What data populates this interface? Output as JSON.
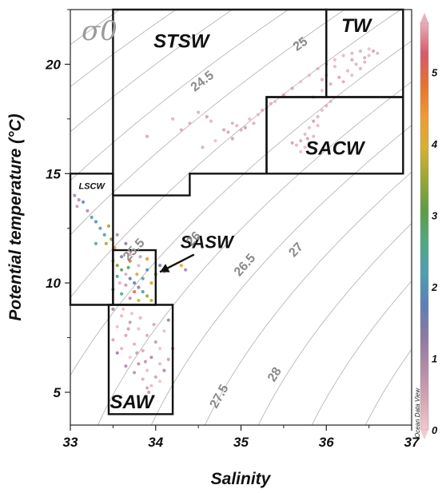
{
  "chart_data": {
    "type": "scatter",
    "xlabel": "Salinity",
    "ylabel": "Potential temperature (°C)",
    "xlim": [
      33,
      37
    ],
    "ylim": [
      3.5,
      22.5
    ],
    "x_ticks": [
      "33",
      "34",
      "35",
      "36",
      "37"
    ],
    "y_ticks": [
      {
        "value": 5,
        "label": "5"
      },
      {
        "value": 10,
        "label": "10"
      },
      {
        "value": 15,
        "label": "15"
      },
      {
        "value": 20,
        "label": "20"
      }
    ],
    "contour_symbol": "σ0",
    "isopycnals": [
      {
        "sigma": 24.5,
        "label": "24.5",
        "label_at": [
          34.55,
          19.2
        ]
      },
      {
        "sigma": 25,
        "label": "25",
        "label_at": [
          35.7,
          20.9
        ]
      },
      {
        "sigma": 25.5,
        "label": "25.5",
        "label_at": [
          33.75,
          11.5
        ]
      },
      {
        "sigma": 26,
        "label": "26",
        "label_at": [
          34.45,
          12.0
        ]
      },
      {
        "sigma": 26.5,
        "label": "26.5",
        "label_at": [
          35.05,
          10.8
        ]
      },
      {
        "sigma": 27,
        "label": "27",
        "label_at": [
          35.65,
          11.5
        ]
      },
      {
        "sigma": 27.5,
        "label": "27.5",
        "label_at": [
          34.75,
          4.8
        ]
      },
      {
        "sigma": 28,
        "label": "28",
        "label_at": [
          35.4,
          5.8
        ]
      }
    ],
    "water_masses": [
      {
        "name": "STSW",
        "polygon": [
          [
            33.5,
            22.5
          ],
          [
            36,
            22.5
          ],
          [
            36,
            18.5
          ],
          [
            35.3,
            18.5
          ],
          [
            35.3,
            15
          ],
          [
            34.4,
            15
          ],
          [
            34.4,
            14
          ],
          [
            33.5,
            14
          ]
        ],
        "label_at": [
          34.3,
          21.0
        ],
        "size": 24
      },
      {
        "name": "TW",
        "polygon": [
          [
            36,
            22.5
          ],
          [
            36.9,
            22.5
          ],
          [
            36.9,
            18.5
          ],
          [
            36,
            18.5
          ]
        ],
        "label_at": [
          36.35,
          21.7
        ],
        "size": 24
      },
      {
        "name": "SACW",
        "polygon": [
          [
            35.3,
            18.5
          ],
          [
            36.9,
            18.5
          ],
          [
            36.9,
            15
          ],
          [
            35.3,
            15
          ]
        ],
        "label_at": [
          36.1,
          16.1
        ],
        "size": 24
      },
      {
        "name": "LSCW",
        "polygon": [
          [
            33,
            15
          ],
          [
            33.5,
            15
          ],
          [
            33.5,
            9
          ],
          [
            33,
            9
          ]
        ],
        "label_at": [
          33.25,
          14.4
        ],
        "size": 11
      },
      {
        "name": "SASW",
        "polygon": [
          [
            33.5,
            11.5
          ],
          [
            34,
            11.5
          ],
          [
            34,
            9
          ],
          [
            33.5,
            9
          ]
        ],
        "label_at": [
          34.6,
          11.8
        ],
        "size": 22
      },
      {
        "name": "SAW",
        "polygon": [
          [
            33.45,
            9
          ],
          [
            34.2,
            9
          ],
          [
            34.2,
            4
          ],
          [
            33.45,
            4
          ]
        ],
        "label_at": [
          33.72,
          4.5
        ],
        "size": 24
      }
    ],
    "arrow": {
      "from": [
        34.45,
        11.3
      ],
      "to": [
        34.05,
        10.5
      ]
    },
    "colorbar": {
      "ticks": [
        "0",
        "1",
        "2",
        "3",
        "4",
        "5"
      ],
      "range": [
        0,
        5.7
      ],
      "stops": [
        "#f2c9ce",
        "#d6a3b2",
        "#b38aa7",
        "#8b78a4",
        "#5c7fb9",
        "#4e9fb4",
        "#4daa7f",
        "#5c9e43",
        "#9aa733",
        "#d8b12d",
        "#f09a31",
        "#e8722b",
        "#d9586a",
        "#ebadb8"
      ],
      "credit": "Ocean Data View"
    },
    "clusters": [
      {
        "name": "TW",
        "points": [
          [
            35.9,
            19.8
          ],
          [
            36.0,
            20.0
          ],
          [
            36.1,
            20.2
          ],
          [
            36.2,
            20.4
          ],
          [
            36.3,
            20.5
          ],
          [
            36.4,
            20.6
          ],
          [
            36.5,
            20.7
          ],
          [
            36.55,
            20.6
          ],
          [
            36.45,
            20.3
          ],
          [
            36.35,
            20.0
          ],
          [
            36.25,
            19.7
          ],
          [
            36.15,
            19.4
          ],
          [
            36.05,
            19.1
          ],
          [
            35.95,
            18.8
          ],
          [
            35.85,
            18.5
          ],
          [
            36.1,
            19.9
          ],
          [
            36.3,
            20.2
          ],
          [
            36.5,
            20.4
          ],
          [
            36.2,
            19.2
          ],
          [
            36.4,
            19.8
          ],
          [
            35.8,
            19.5
          ],
          [
            35.7,
            19.2
          ],
          [
            35.6,
            18.9
          ],
          [
            35.5,
            18.6
          ],
          [
            35.4,
            18.3
          ],
          [
            36.6,
            20.5
          ],
          [
            36.0,
            19.5
          ],
          [
            36.3,
            19.5
          ],
          [
            36.45,
            20.1
          ],
          [
            35.95,
            19.3
          ]
        ]
      },
      {
        "name": "SACW",
        "points": [
          [
            35.7,
            16.5
          ],
          [
            35.75,
            16.8
          ],
          [
            35.8,
            17.1
          ],
          [
            35.85,
            17.4
          ],
          [
            35.9,
            17.6
          ],
          [
            35.95,
            17.9
          ],
          [
            36.0,
            18.1
          ],
          [
            36.05,
            18.3
          ],
          [
            35.75,
            16.2
          ],
          [
            35.8,
            16.4
          ],
          [
            35.85,
            16.7
          ],
          [
            35.65,
            16.3
          ],
          [
            35.7,
            16.0
          ],
          [
            35.6,
            16.4
          ],
          [
            35.9,
            17.2
          ],
          [
            35.78,
            16.6
          ]
        ]
      },
      {
        "name": "STSW",
        "points": [
          [
            34.9,
            17.3
          ],
          [
            34.95,
            17.2
          ],
          [
            35.0,
            17.0
          ],
          [
            34.5,
            17.8
          ],
          [
            34.6,
            17.6
          ],
          [
            34.85,
            16.9
          ],
          [
            35.1,
            17.5
          ],
          [
            35.2,
            17.7
          ],
          [
            35.25,
            17.9
          ],
          [
            35.3,
            18.0
          ],
          [
            34.7,
            16.5
          ],
          [
            34.3,
            17.0
          ],
          [
            33.9,
            16.7
          ],
          [
            34.8,
            17.0
          ],
          [
            35.05,
            17.1
          ],
          [
            34.65,
            17.4
          ],
          [
            34.4,
            17.3
          ],
          [
            35.35,
            18.2
          ],
          [
            35.15,
            17.3
          ],
          [
            34.9,
            16.6
          ],
          [
            34.55,
            16.2
          ],
          [
            34.2,
            17.5
          ]
        ]
      },
      {
        "name": "LSCW",
        "points": [
          [
            33.05,
            14.0
          ],
          [
            33.1,
            13.8
          ],
          [
            33.15,
            13.7
          ],
          [
            33.08,
            13.5
          ],
          [
            33.2,
            13.3
          ],
          [
            33.3,
            12.8
          ],
          [
            33.35,
            12.5
          ],
          [
            33.4,
            12.2
          ],
          [
            33.3,
            11.8
          ],
          [
            33.25,
            13.0
          ]
        ]
      },
      {
        "name": "SASW",
        "points": [
          [
            33.5,
            11.0
          ],
          [
            33.55,
            10.8
          ],
          [
            33.6,
            10.6
          ],
          [
            33.65,
            10.4
          ],
          [
            33.7,
            10.2
          ],
          [
            33.75,
            10.0
          ],
          [
            33.8,
            9.8
          ],
          [
            33.85,
            9.6
          ],
          [
            33.9,
            9.4
          ],
          [
            33.95,
            9.2
          ],
          [
            33.6,
            11.2
          ],
          [
            33.7,
            11.0
          ],
          [
            33.8,
            10.8
          ],
          [
            33.9,
            10.6
          ],
          [
            34.0,
            10.4
          ],
          [
            33.55,
            10.3
          ],
          [
            33.65,
            9.9
          ],
          [
            33.75,
            9.6
          ],
          [
            33.85,
            10.2
          ],
          [
            33.95,
            10.0
          ],
          [
            33.5,
            9.7
          ],
          [
            33.6,
            9.5
          ],
          [
            33.7,
            9.3
          ],
          [
            33.8,
            9.2
          ],
          [
            33.9,
            11.1
          ],
          [
            34.05,
            10.8
          ],
          [
            34.1,
            10.5
          ],
          [
            33.55,
            12.2
          ],
          [
            33.45,
            12.6
          ],
          [
            33.42,
            11.8
          ],
          [
            33.48,
            12.0
          ],
          [
            33.52,
            11.6
          ],
          [
            33.65,
            11.8
          ],
          [
            34.3,
            10.8
          ],
          [
            34.35,
            10.6
          ],
          [
            33.7,
            11.3
          ],
          [
            33.82,
            11.2
          ],
          [
            33.58,
            10.0
          ],
          [
            33.68,
            10.7
          ],
          [
            33.78,
            10.4
          ]
        ]
      },
      {
        "name": "SAW",
        "points": [
          [
            33.5,
            8.8
          ],
          [
            33.6,
            8.5
          ],
          [
            33.7,
            8.2
          ],
          [
            33.8,
            7.9
          ],
          [
            33.9,
            7.6
          ],
          [
            34.0,
            7.3
          ],
          [
            33.55,
            8.0
          ],
          [
            33.65,
            7.6
          ],
          [
            33.75,
            7.2
          ],
          [
            33.85,
            6.9
          ],
          [
            33.95,
            6.6
          ],
          [
            34.05,
            6.3
          ],
          [
            33.6,
            7.0
          ],
          [
            33.7,
            6.6
          ],
          [
            33.8,
            6.3
          ],
          [
            33.9,
            6.0
          ],
          [
            34.0,
            5.7
          ],
          [
            33.95,
            5.3
          ],
          [
            33.92,
            5.0
          ],
          [
            33.97,
            4.8
          ],
          [
            34.05,
            5.5
          ],
          [
            34.1,
            6.0
          ],
          [
            34.15,
            6.5
          ],
          [
            34.2,
            7.0
          ],
          [
            33.5,
            7.4
          ],
          [
            33.55,
            6.8
          ],
          [
            33.65,
            6.2
          ],
          [
            33.75,
            5.9
          ],
          [
            33.85,
            5.6
          ],
          [
            33.9,
            5.2
          ],
          [
            34.1,
            7.8
          ],
          [
            34.15,
            8.3
          ],
          [
            33.62,
            8.8
          ],
          [
            33.72,
            8.6
          ],
          [
            33.82,
            8.4
          ],
          [
            33.98,
            8.1
          ],
          [
            34.05,
            7.0
          ],
          [
            33.88,
            6.4
          ],
          [
            33.78,
            6.8
          ],
          [
            33.68,
            7.9
          ]
        ]
      }
    ]
  }
}
